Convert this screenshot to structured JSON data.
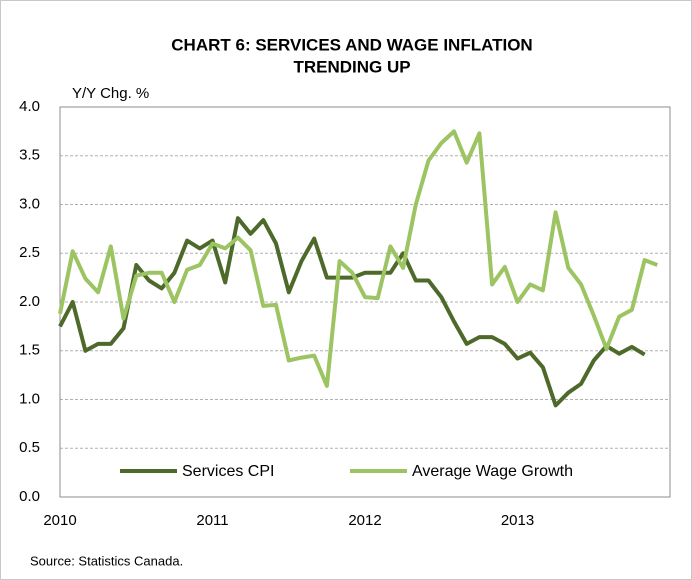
{
  "chart_data": {
    "type": "line",
    "title": [
      "CHART 6: SERVICES AND WAGE INFLATION",
      "TRENDING UP"
    ],
    "y_label": "Y/Y Chg. %",
    "source": "Source: Statistics Canada.",
    "categories": [
      "2010",
      null,
      null,
      null,
      null,
      null,
      null,
      null,
      null,
      null,
      null,
      null,
      "2011",
      null,
      null,
      null,
      null,
      null,
      null,
      null,
      null,
      null,
      null,
      null,
      "2012",
      null,
      null,
      null,
      null,
      null,
      null,
      null,
      null,
      null,
      null,
      null,
      "2013",
      null,
      null,
      null,
      null,
      null,
      null,
      null,
      null,
      null,
      null,
      null
    ],
    "series": [
      {
        "name": "Services CPI",
        "color": "#4e6a2a",
        "values": [
          1.75,
          2.0,
          1.5,
          1.57,
          1.57,
          1.73,
          2.38,
          2.22,
          2.14,
          2.3,
          2.63,
          2.55,
          2.63,
          2.2,
          2.86,
          2.7,
          2.84,
          2.6,
          2.1,
          2.42,
          2.65,
          2.25,
          2.25,
          2.25,
          2.3,
          2.3,
          2.3,
          2.5,
          2.22,
          2.22,
          2.05,
          1.8,
          1.57,
          1.64,
          1.64,
          1.57,
          1.42,
          1.48,
          1.33,
          0.94,
          1.07,
          1.16,
          1.4,
          1.55,
          1.47,
          1.54,
          1.46,
          null
        ]
      },
      {
        "name": "Average Wage Growth",
        "color": "#9cc462",
        "values": [
          1.88,
          2.52,
          2.24,
          2.1,
          2.57,
          1.83,
          2.27,
          2.3,
          2.3,
          2.0,
          2.33,
          2.38,
          2.6,
          2.55,
          2.66,
          2.53,
          1.96,
          1.97,
          1.4,
          1.43,
          1.45,
          1.14,
          2.42,
          2.3,
          2.05,
          2.04,
          2.57,
          2.35,
          3.0,
          3.45,
          3.63,
          3.75,
          3.43,
          3.73,
          2.18,
          2.36,
          2.0,
          2.18,
          2.12,
          2.92,
          2.35,
          2.18,
          1.86,
          1.52,
          1.85,
          1.92,
          2.43,
          2.38
        ]
      }
    ],
    "ylim": [
      0,
      4
    ],
    "yticks": [
      {
        "value": 0,
        "label": "0.0"
      },
      0.5,
      {
        "value": 1,
        "label": "1.0"
      },
      1.5,
      {
        "value": 2,
        "label": "2.0"
      },
      2.5,
      {
        "value": 3,
        "label": "3.0"
      },
      3.5,
      {
        "value": 4,
        "label": "4.0"
      }
    ],
    "grid": true,
    "legend": "bottom"
  }
}
